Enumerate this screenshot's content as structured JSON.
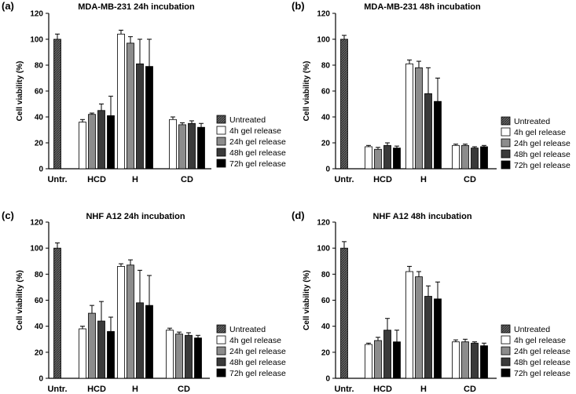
{
  "colors": {
    "untreated": "#555555",
    "gel_4h": "#ffffff",
    "gel_24h": "#8c8c8c",
    "gel_48h": "#3a3a3a",
    "gel_72h": "#000000"
  },
  "chart_data": [
    {
      "type": "bar",
      "panel_label": "(a)",
      "title": "MDA-MB-231 24h incubation",
      "xlabel": "",
      "ylabel": "Cell viability (%)",
      "ylim": [
        0,
        120
      ],
      "yticks": [
        "0",
        "20",
        "40",
        "60",
        "80",
        "100",
        "120"
      ],
      "groups": [
        "Untr.",
        "HCD",
        "H",
        "CD"
      ],
      "untreated": {
        "name": "Untreated",
        "value": 100,
        "error": 4
      },
      "series": [
        {
          "name": "4h gel release",
          "values": [
            36,
            104,
            38
          ],
          "errors": [
            2,
            3,
            2
          ]
        },
        {
          "name": "24h gel release",
          "values": [
            42,
            97,
            34
          ],
          "errors": [
            1,
            5,
            1.5
          ]
        },
        {
          "name": "48h gel release",
          "values": [
            45,
            81,
            35
          ],
          "errors": [
            5,
            19,
            2
          ]
        },
        {
          "name": "72h gel release",
          "values": [
            41,
            79,
            32
          ],
          "errors": [
            15,
            21,
            3
          ]
        }
      ]
    },
    {
      "type": "bar",
      "panel_label": "(b)",
      "title": "MDA-MB-231 48h incubation",
      "xlabel": "",
      "ylabel": "Cell viability (%)",
      "ylim": [
        0,
        120
      ],
      "yticks": [
        "0",
        "20",
        "40",
        "60",
        "80",
        "100",
        "120"
      ],
      "groups": [
        "Untr.",
        "HCD",
        "H",
        "CD"
      ],
      "untreated": {
        "name": "Untreated",
        "value": 100,
        "error": 3
      },
      "series": [
        {
          "name": "4h gel release",
          "values": [
            17,
            81,
            18
          ],
          "errors": [
            1,
            3,
            1
          ]
        },
        {
          "name": "24h gel release",
          "values": [
            15,
            78,
            18
          ],
          "errors": [
            1.5,
            5,
            1
          ]
        },
        {
          "name": "48h gel release",
          "values": [
            18,
            58,
            16
          ],
          "errors": [
            2,
            20,
            1
          ]
        },
        {
          "name": "72h gel release",
          "values": [
            16,
            52,
            17
          ],
          "errors": [
            1.5,
            18,
            1
          ]
        }
      ]
    },
    {
      "type": "bar",
      "panel_label": "(c)",
      "title": "NHF A12 24h incubation",
      "xlabel": "",
      "ylabel": "Cell viability (%)",
      "ylim": [
        0,
        120
      ],
      "yticks": [
        "0",
        "20",
        "40",
        "60",
        "80",
        "100",
        "120"
      ],
      "groups": [
        "Untr.",
        "HCD",
        "H",
        "CD"
      ],
      "untreated": {
        "name": "Untreated",
        "value": 100,
        "error": 4
      },
      "series": [
        {
          "name": "4h gel release",
          "values": [
            38,
            86,
            37
          ],
          "errors": [
            2,
            2,
            1.5
          ]
        },
        {
          "name": "24h gel release",
          "values": [
            50,
            87,
            34
          ],
          "errors": [
            6,
            4,
            1.5
          ]
        },
        {
          "name": "48h gel release",
          "values": [
            44,
            58,
            33
          ],
          "errors": [
            15,
            25,
            2
          ]
        },
        {
          "name": "72h gel release",
          "values": [
            36,
            56,
            31
          ],
          "errors": [
            11,
            23,
            2
          ]
        }
      ]
    },
    {
      "type": "bar",
      "panel_label": "(d)",
      "title": "NHF A12 48h incubation",
      "xlabel": "",
      "ylabel": "Cell viability (%)",
      "ylim": [
        0,
        120
      ],
      "yticks": [
        "0",
        "20",
        "40",
        "60",
        "80",
        "100",
        "120"
      ],
      "groups": [
        "Untr.",
        "HCD",
        "H",
        "CD"
      ],
      "untreated": {
        "name": "Untreated",
        "value": 100,
        "error": 5
      },
      "series": [
        {
          "name": "4h gel release",
          "values": [
            26,
            82,
            28
          ],
          "errors": [
            1,
            4,
            1.5
          ]
        },
        {
          "name": "24h gel release",
          "values": [
            29,
            78,
            28
          ],
          "errors": [
            2.5,
            4,
            2
          ]
        },
        {
          "name": "48h gel release",
          "values": [
            37,
            63,
            27
          ],
          "errors": [
            9,
            8,
            1
          ]
        },
        {
          "name": "72h gel release",
          "values": [
            28,
            61,
            25
          ],
          "errors": [
            9,
            13,
            2
          ]
        }
      ]
    }
  ]
}
